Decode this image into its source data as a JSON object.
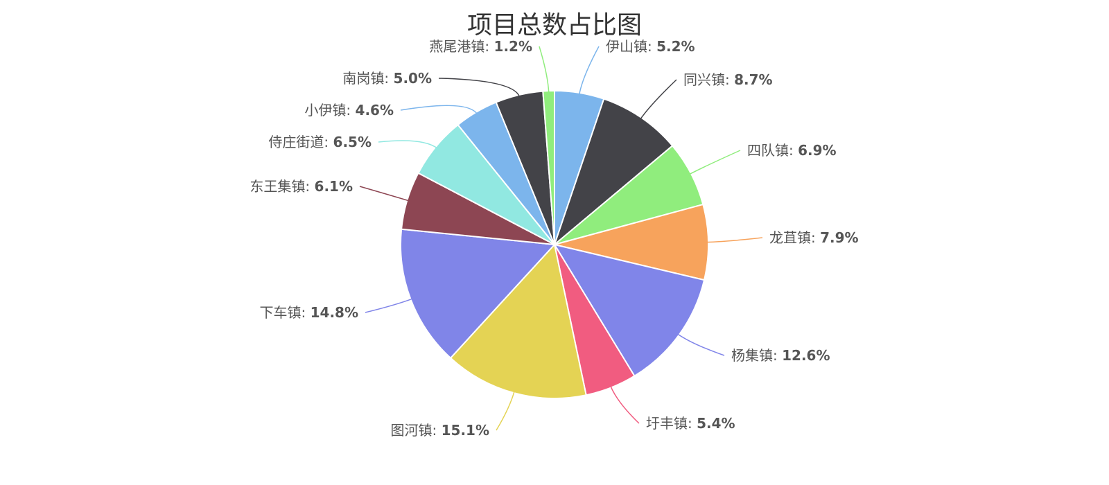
{
  "chart_data": {
    "type": "pie",
    "title": "项目总数占比图",
    "unit": "%",
    "slices": [
      {
        "label": "伊山镇",
        "value": 5.2,
        "display": "5.2%",
        "color": "#7cb5ec"
      },
      {
        "label": "同兴镇",
        "value": 8.7,
        "display": "8.7%",
        "color": "#434348"
      },
      {
        "label": "四队镇",
        "value": 6.9,
        "display": "6.9%",
        "color": "#90ed7d"
      },
      {
        "label": "龙苴镇",
        "value": 7.9,
        "display": "7.9%",
        "color": "#f7a35c"
      },
      {
        "label": "杨集镇",
        "value": 12.6,
        "display": "12.6%",
        "color": "#8085e9"
      },
      {
        "label": "圩丰镇",
        "value": 5.4,
        "display": "5.4%",
        "color": "#f15c80"
      },
      {
        "label": "图河镇",
        "value": 15.1,
        "display": "15.1%",
        "color": "#e4d354"
      },
      {
        "label": "下车镇",
        "value": 14.8,
        "display": "14.8%",
        "color": "#8085e8"
      },
      {
        "label": "东王集镇",
        "value": 6.1,
        "display": "6.1%",
        "color": "#8d4653"
      },
      {
        "label": "侍庄街道",
        "value": 6.5,
        "display": "6.5%",
        "color": "#91e8e1"
      },
      {
        "label": "小伊镇",
        "value": 4.6,
        "display": "4.6%",
        "color": "#7cb5ec"
      },
      {
        "label": "南岗镇",
        "value": 5.0,
        "display": "5.0%",
        "color": "#434348"
      },
      {
        "label": "燕尾港镇",
        "value": 1.2,
        "display": "1.2%",
        "color": "#90ed7d"
      }
    ]
  }
}
